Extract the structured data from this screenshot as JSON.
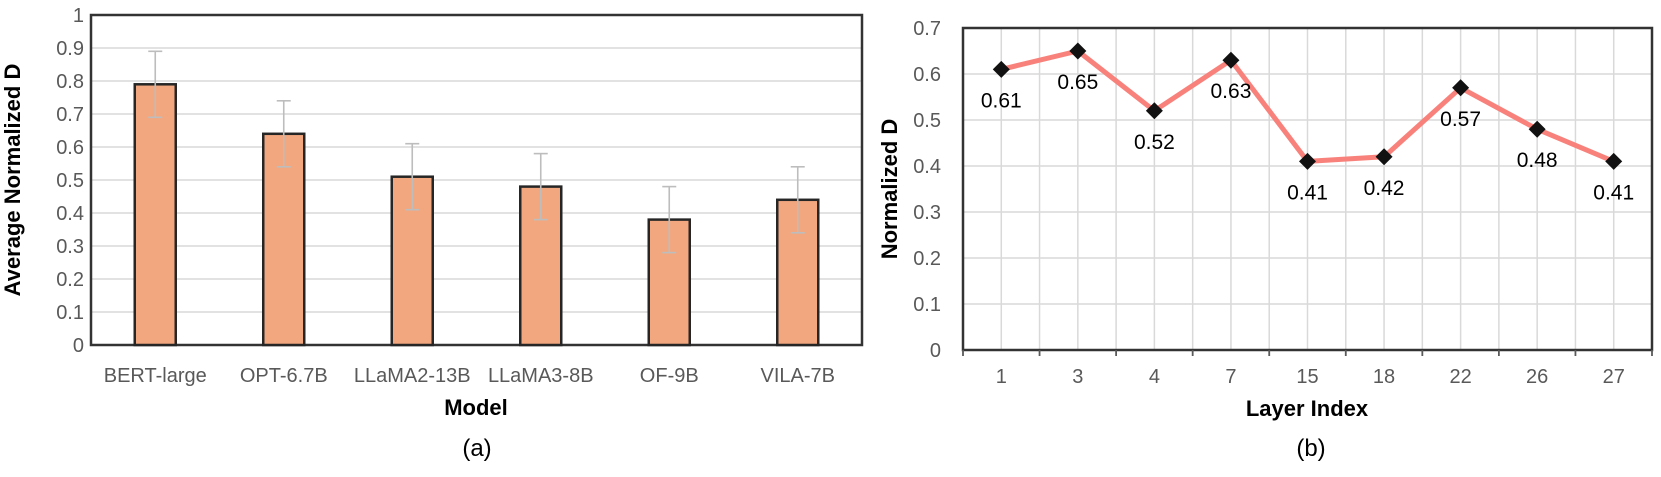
{
  "figure": {
    "background": "#ffffff",
    "panel_a_caption": "(a)",
    "panel_b_caption": "(b)"
  },
  "chart_data": [
    {
      "type": "bar",
      "title": "",
      "categories": [
        "BERT-large",
        "OPT-6.7B",
        "LLaMA2-13B",
        "LLaMA3-8B",
        "OF-9B",
        "VILA-7B"
      ],
      "values": [
        0.79,
        0.64,
        0.51,
        0.48,
        0.38,
        0.44
      ],
      "error_bars": [
        0.1,
        0.1,
        0.1,
        0.1,
        0.1,
        0.1
      ],
      "xlabel": "Model",
      "ylabel": "Average Normalized D",
      "ylim": [
        0,
        1
      ],
      "ytick_step": 0.1,
      "grid": "horizontal",
      "legend": "none",
      "caption": "(a)",
      "colors": {
        "bar_fill": "#F2A77F",
        "bar_border": "#262626",
        "error_bar": "#BDBDBD",
        "gridline": "#D9D9D9",
        "plot_border": "#333333",
        "tick_text": "#595959"
      }
    },
    {
      "type": "line",
      "title": "",
      "categories": [
        "1",
        "3",
        "4",
        "7",
        "15",
        "18",
        "22",
        "26",
        "27"
      ],
      "values": [
        0.61,
        0.65,
        0.52,
        0.63,
        0.41,
        0.42,
        0.57,
        0.48,
        0.41
      ],
      "data_labels": [
        "0.61",
        "0.65",
        "0.52",
        "0.63",
        "0.41",
        "0.42",
        "0.57",
        "0.48",
        "0.41"
      ],
      "xlabel": "Layer Index",
      "ylabel": "Normalized D",
      "ylim": [
        0,
        0.7
      ],
      "ytick_step": 0.1,
      "grid": "both",
      "legend": "none",
      "marker": "diamond",
      "caption": "(b)",
      "colors": {
        "line": "#F8827B",
        "marker": "#111111",
        "gridline": "#D9D9D9",
        "plot_border": "#333333",
        "tick_text": "#595959",
        "axis_tick": "#595959"
      }
    }
  ]
}
